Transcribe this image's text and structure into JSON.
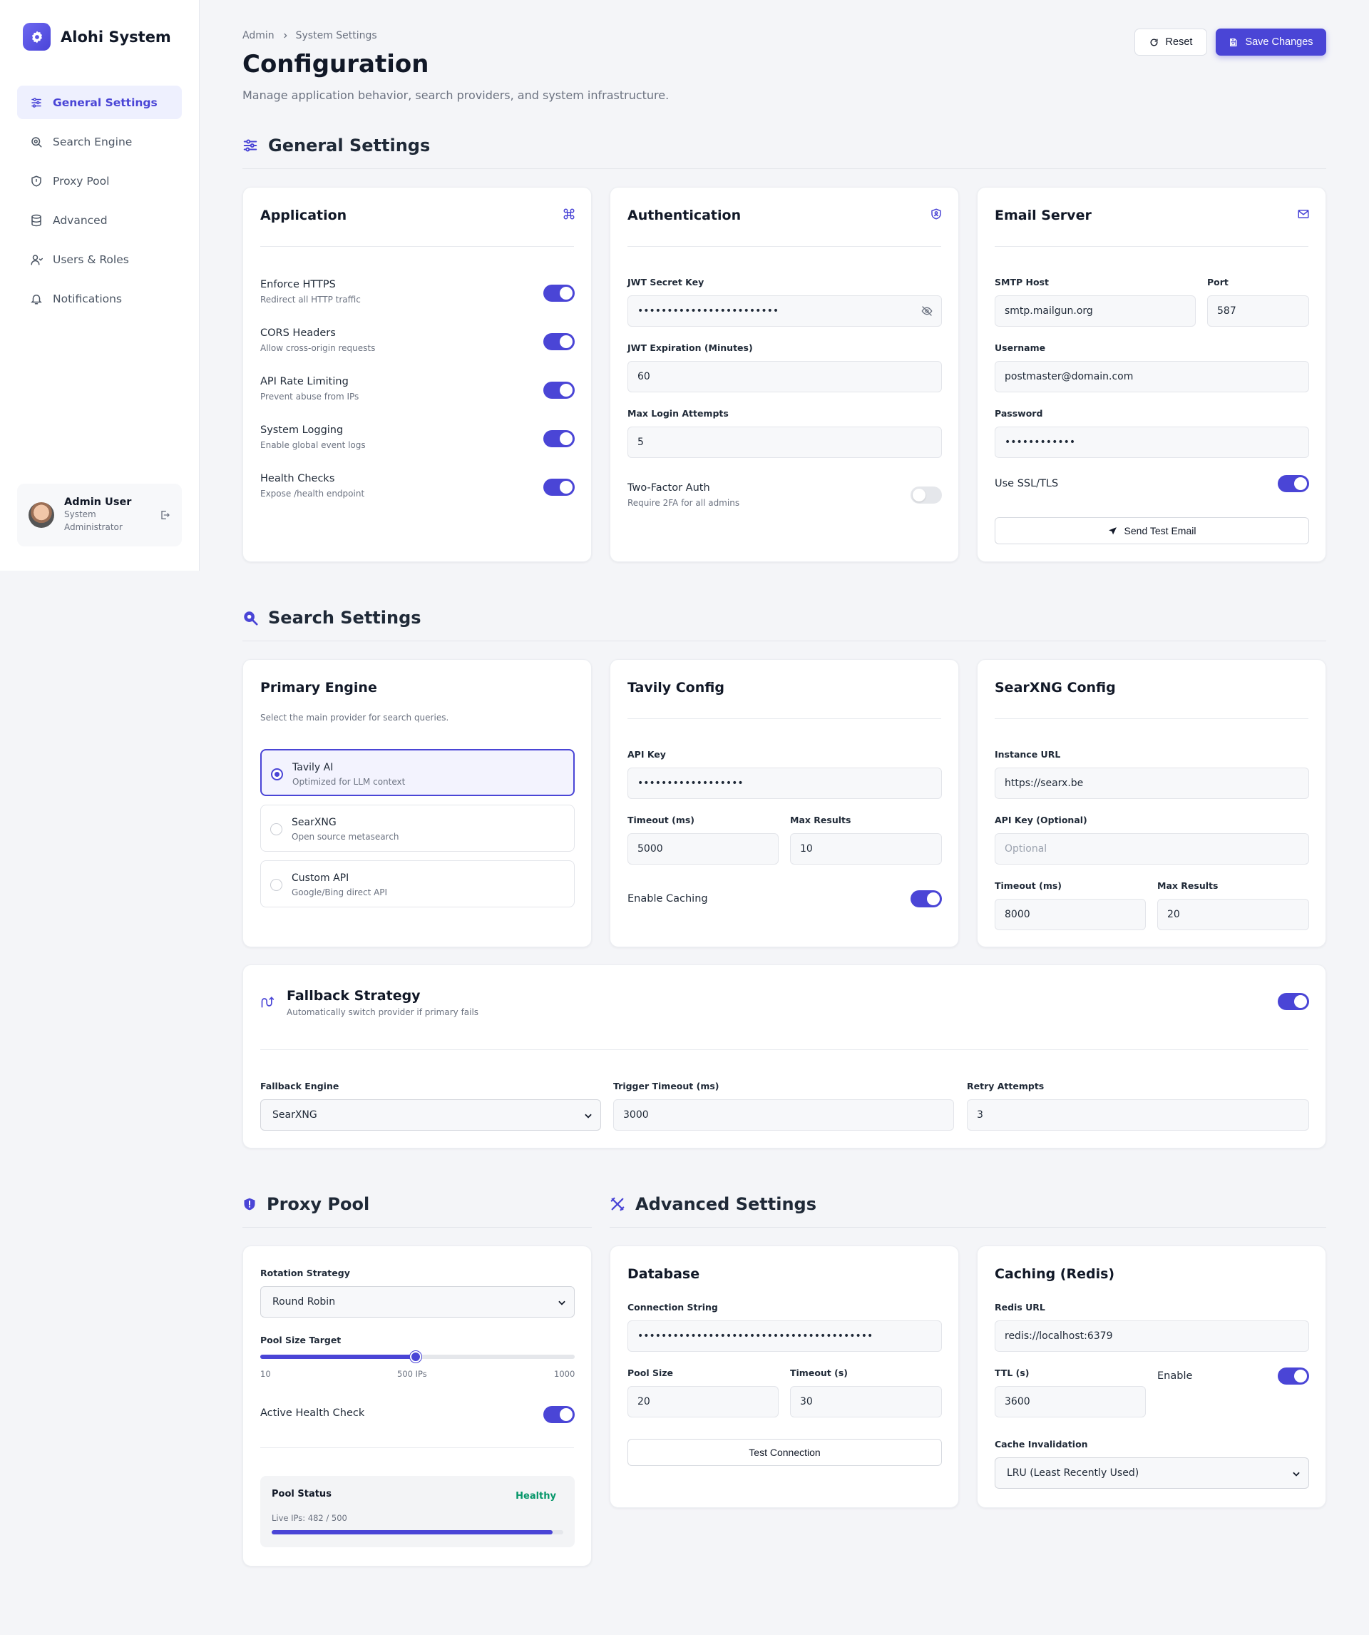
{
  "brand": {
    "name": "Alohi System"
  },
  "sidebar": {
    "items": [
      {
        "label": "General Settings",
        "icon": "sliders-icon",
        "active": true
      },
      {
        "label": "Search Engine",
        "icon": "search-icon"
      },
      {
        "label": "Proxy Pool",
        "icon": "shield-icon"
      },
      {
        "label": "Advanced",
        "icon": "database-icon"
      },
      {
        "label": "Users & Roles",
        "icon": "user-icon"
      },
      {
        "label": "Notifications",
        "icon": "bell-icon"
      }
    ],
    "user": {
      "name": "Admin User",
      "role": "System Administrator"
    }
  },
  "header": {
    "breadcrumb": [
      "Admin",
      "System Settings"
    ],
    "title": "Configuration",
    "subtitle": "Manage application behavior, search providers, and system infrastructure.",
    "reset_label": "Reset",
    "save_label": "Save Changes"
  },
  "general": {
    "heading": "General Settings",
    "application": {
      "title": "Application",
      "toggles": [
        {
          "label": "Enforce HTTPS",
          "desc": "Redirect all HTTP traffic",
          "on": true
        },
        {
          "label": "CORS Headers",
          "desc": "Allow cross-origin requests",
          "on": true
        },
        {
          "label": "API Rate Limiting",
          "desc": "Prevent abuse from IPs",
          "on": true
        },
        {
          "label": "System Logging",
          "desc": "Enable global event logs",
          "on": true
        },
        {
          "label": "Health Checks",
          "desc": "Expose /health endpoint",
          "on": true
        }
      ]
    },
    "auth": {
      "title": "Authentication",
      "jwt_label": "JWT Secret Key",
      "jwt_value": "••••••••••••••••••••••••",
      "exp_label": "JWT Expiration (Minutes)",
      "exp_value": "60",
      "attempts_label": "Max Login Attempts",
      "attempts_value": "5",
      "twofa_label": "Two-Factor Auth",
      "twofa_desc": "Require 2FA for all admins",
      "twofa_on": false
    },
    "email": {
      "title": "Email Server",
      "host_label": "SMTP Host",
      "host_value": "smtp.mailgun.org",
      "port_label": "Port",
      "port_value": "587",
      "user_label": "Username",
      "user_value": "postmaster@domain.com",
      "pass_label": "Password",
      "pass_value": "••••••••••••",
      "ssl_label": "Use SSL/TLS",
      "ssl_on": true,
      "test_label": "Send Test Email"
    }
  },
  "search": {
    "heading": "Search Settings",
    "primary": {
      "title": "Primary Engine",
      "desc": "Select the main provider for search queries.",
      "options": [
        {
          "title": "Tavily AI",
          "desc": "Optimized for LLM context",
          "selected": true
        },
        {
          "title": "SearXNG",
          "desc": "Open source metasearch"
        },
        {
          "title": "Custom API",
          "desc": "Google/Bing direct API"
        }
      ]
    },
    "tavily": {
      "title": "Tavily Config",
      "key_label": "API Key",
      "key_value": "••••••••••••••••••",
      "timeout_label": "Timeout (ms)",
      "timeout_value": "5000",
      "max_label": "Max Results",
      "max_value": "10",
      "cache_label": "Enable Caching",
      "cache_on": true
    },
    "searx": {
      "title": "SearXNG Config",
      "url_label": "Instance URL",
      "url_value": "https://searx.be",
      "key_label": "API Key (Optional)",
      "key_placeholder": "Optional",
      "timeout_label": "Timeout (ms)",
      "timeout_value": "8000",
      "max_label": "Max Results",
      "max_value": "20"
    },
    "fallback": {
      "title": "Fallback Strategy",
      "desc": "Automatically switch provider if primary fails",
      "on": true,
      "engine_label": "Fallback Engine",
      "engine_value": "SearXNG",
      "trigger_label": "Trigger Timeout (ms)",
      "trigger_value": "3000",
      "retry_label": "Retry Attempts",
      "retry_value": "3"
    }
  },
  "proxy": {
    "heading": "Proxy Pool",
    "rotation_label": "Rotation Strategy",
    "rotation_value": "Round Robin",
    "pool_label": "Pool Size Target",
    "pool_min": "10",
    "pool_mid": "500 IPs",
    "pool_max": "1000",
    "pool_value": 500,
    "pool_range": [
      10,
      1000
    ],
    "health_label": "Active Health Check",
    "health_on": true,
    "status_title": "Pool Status",
    "status_badge": "Healthy",
    "live_label": "Live IPs: 482 / 500",
    "live_fraction": 0.964
  },
  "advanced": {
    "heading": "Advanced Settings",
    "database": {
      "title": "Database",
      "conn_label": "Connection String",
      "conn_value": "••••••••••••••••••••••••••••••••••••••••",
      "pool_label": "Pool Size",
      "pool_value": "20",
      "timeout_label": "Timeout (s)",
      "timeout_value": "30",
      "test_label": "Test Connection"
    },
    "cache": {
      "title": "Caching (Redis)",
      "url_label": "Redis URL",
      "url_value": "redis://localhost:6379",
      "ttl_label": "TTL (s)",
      "ttl_value": "3600",
      "enable_label": "Enable",
      "enable_on": true,
      "inval_label": "Cache Invalidation",
      "inval_value": "LRU (Least Recently Used)"
    }
  },
  "colors": {
    "accent": "#4a45d6",
    "healthy": "#059669"
  }
}
